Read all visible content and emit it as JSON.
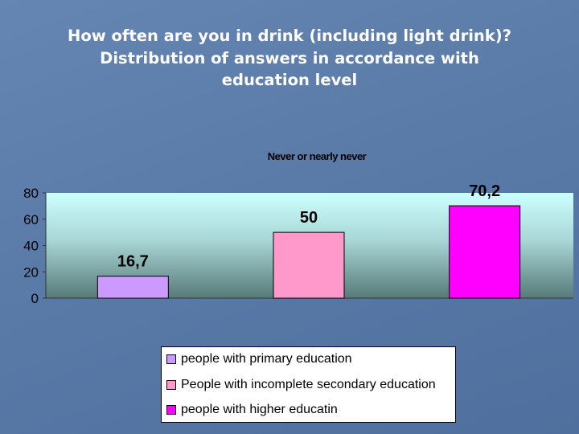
{
  "slide": {
    "title_lines": [
      "How often are you in drink (including light drink)?",
      "Distribution of answers in accordance with",
      "education level"
    ]
  },
  "chart_data": {
    "type": "bar",
    "title": "Never or nearly never",
    "categories": [
      "people with primary education",
      "People with incomplete secondary education",
      "people with higher educatin"
    ],
    "values": [
      16.7,
      50,
      70.2
    ],
    "data_labels": [
      "16,7",
      "50",
      "70,2"
    ],
    "colors": [
      "#cc99ff",
      "#ff99cc",
      "#ff00ff"
    ],
    "ylim": [
      0,
      80
    ],
    "yticks": [
      "0",
      "20",
      "40",
      "60",
      "80"
    ],
    "grid": false,
    "legend_position": "bottom",
    "xlabel": "",
    "ylabel": ""
  }
}
